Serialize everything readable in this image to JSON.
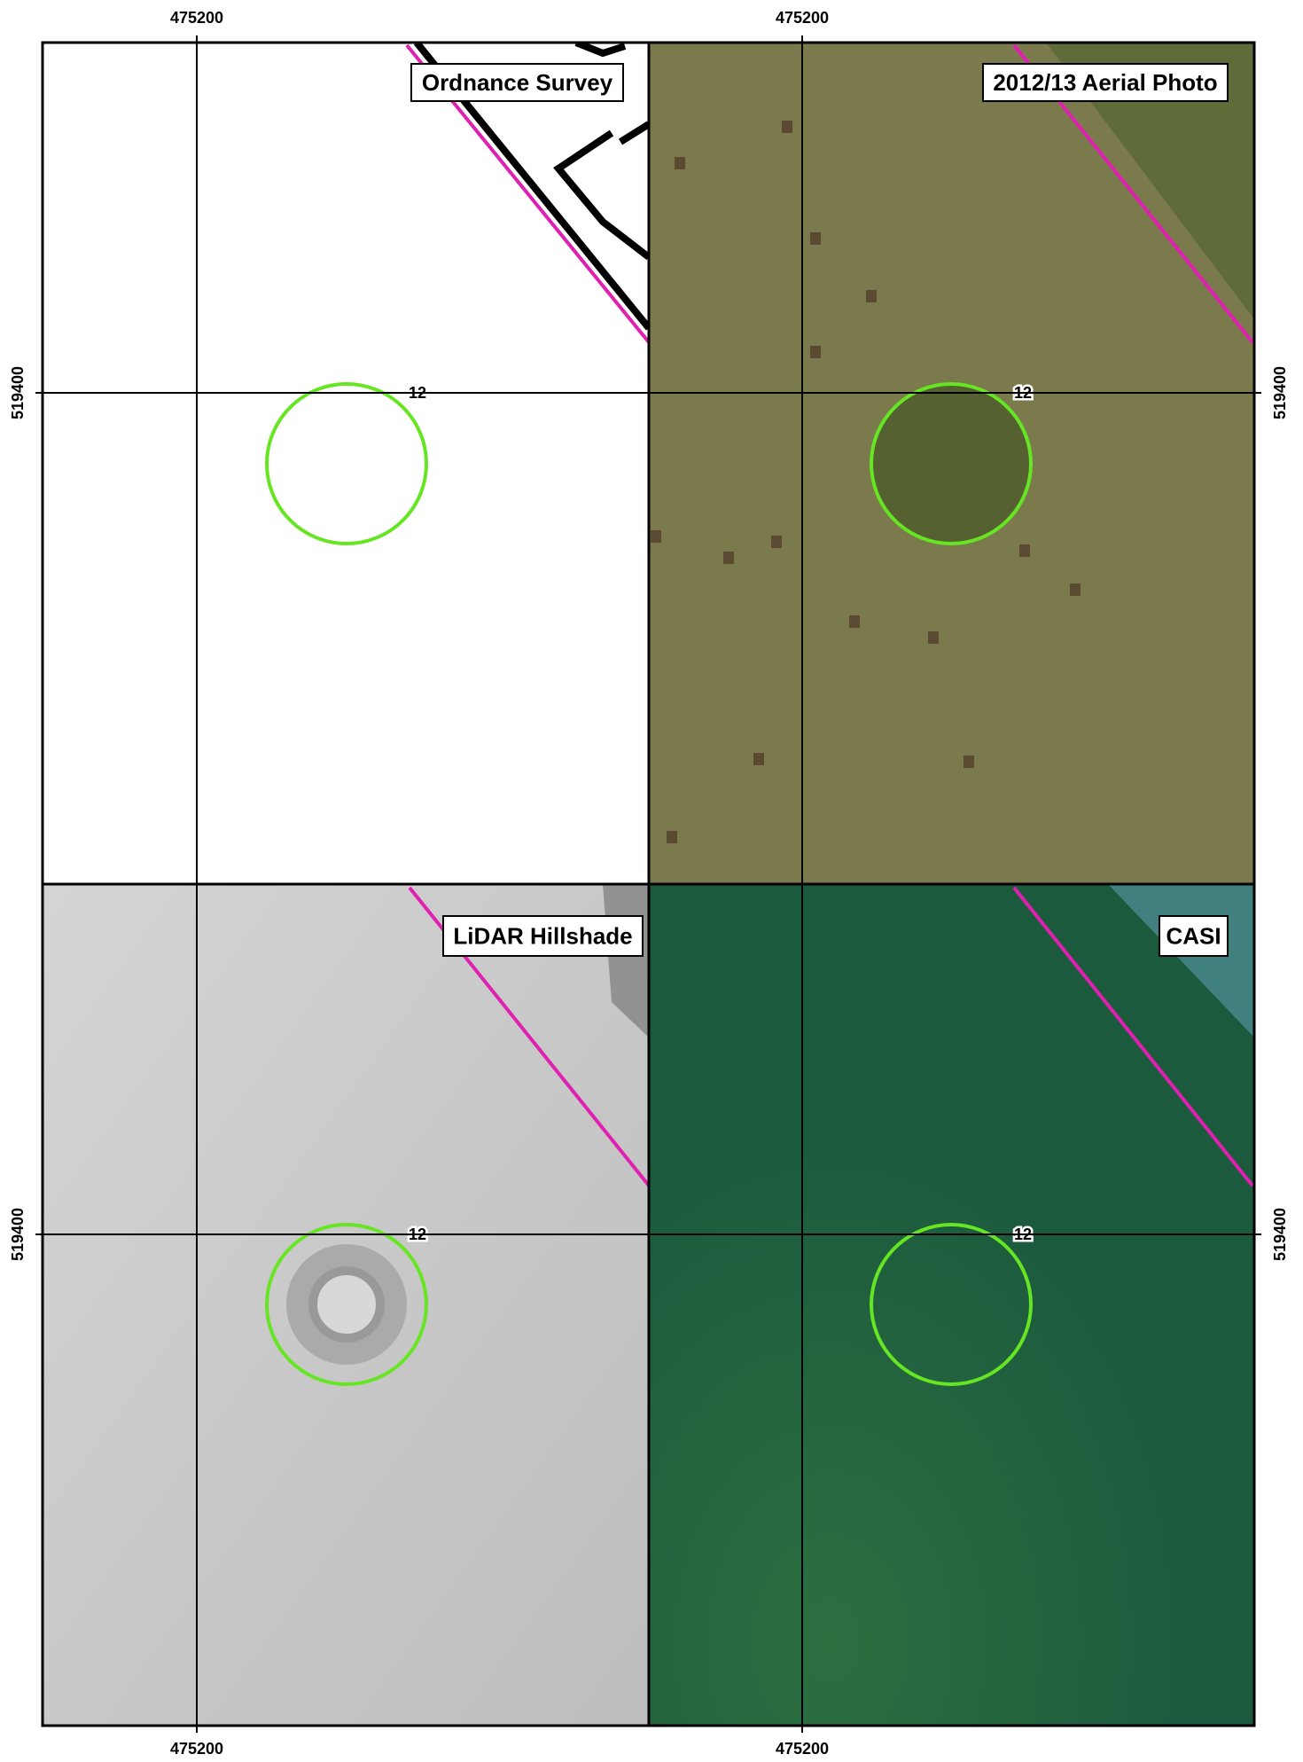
{
  "axis_labels": {
    "top": [
      "475200",
      "475200"
    ],
    "bottom": [
      "475200",
      "475200"
    ],
    "left": [
      "519400",
      "519400"
    ],
    "right": [
      "519400",
      "519400"
    ]
  },
  "panels": [
    {
      "title": "Ordnance Survey",
      "feature_label": "12"
    },
    {
      "title": "2012/13 Aerial Photo",
      "feature_label": "12"
    },
    {
      "title": "LiDAR Hillshade",
      "feature_label": "12"
    },
    {
      "title": "CASI",
      "feature_label": "12"
    }
  ]
}
